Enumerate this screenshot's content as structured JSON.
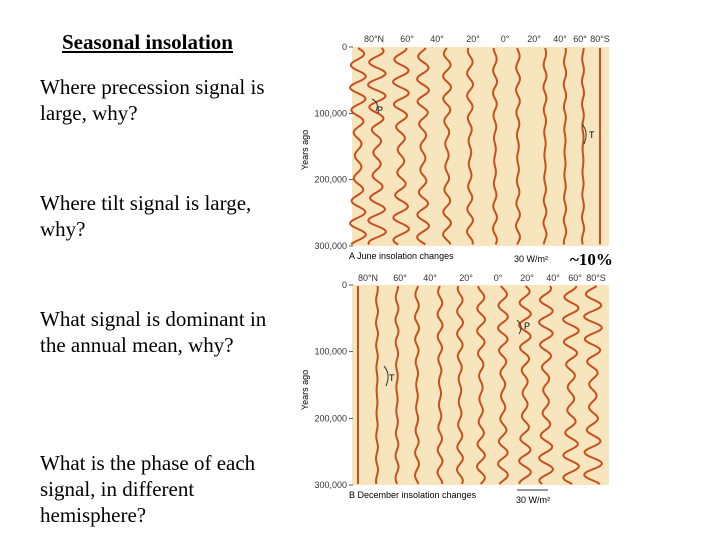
{
  "slide": {
    "title": "Seasonal insolation",
    "questions": [
      "Where precession signal is large, why?",
      "Where tilt signal is large, why?",
      "What signal is dominant in the annual mean, why?",
      "What is the phase of each signal, in different hemisphere?"
    ],
    "annotation": "~10%"
  },
  "figure": {
    "panel_a": {
      "caption": "A  June insolation changes",
      "scale_label": "30 W/m²",
      "lat_labels": [
        "80°N",
        "60°",
        "40°",
        "20°",
        "0°",
        "20°",
        "40°",
        "60°",
        "80°S"
      ],
      "y_ticks": [
        "0",
        "100,000",
        "200,000",
        "300,000"
      ],
      "y_axis_label": "Years ago",
      "marker_p": "P",
      "marker_t": "T"
    },
    "panel_b": {
      "caption": "B  December insolation changes",
      "scale_label": "30 W/m²",
      "lat_labels": [
        "80°N",
        "60°",
        "40°",
        "20°",
        "0°",
        "20°",
        "40°",
        "60°",
        "80°S"
      ],
      "y_ticks": [
        "0",
        "100,000",
        "200,000",
        "300,000"
      ],
      "y_axis_label": "Years ago",
      "marker_p": "P",
      "marker_t": "T"
    },
    "colors": {
      "panel_bg": "#f7e6bd",
      "curve": "#c8501e",
      "text": "#333333"
    }
  }
}
